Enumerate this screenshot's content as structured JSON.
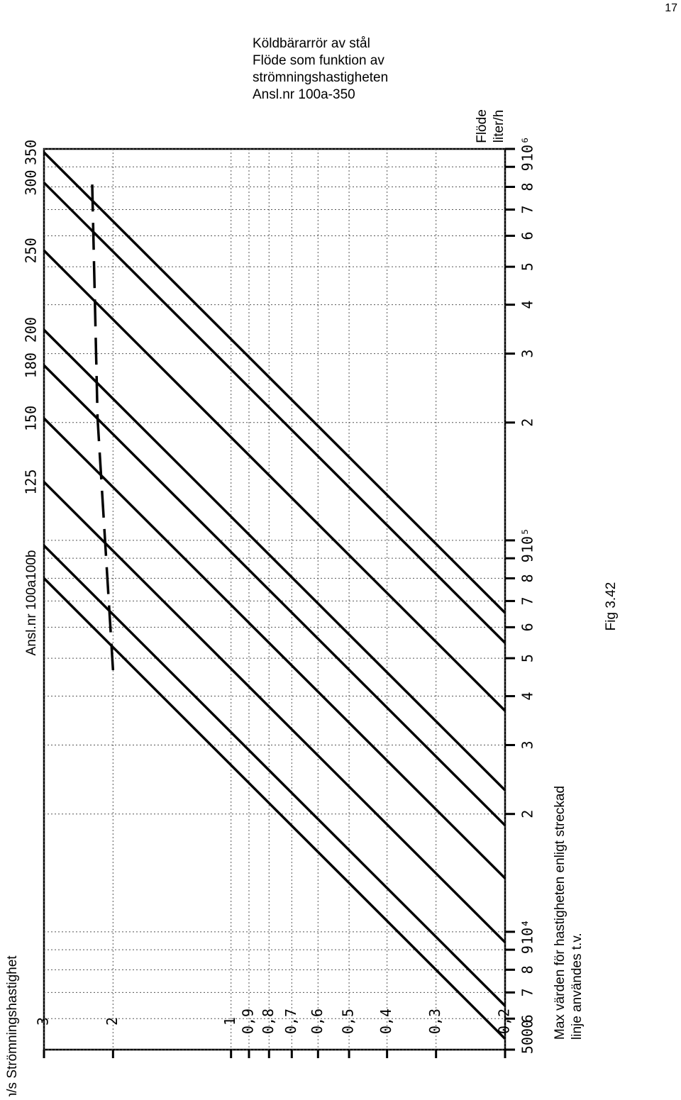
{
  "page_number": "17",
  "title_lines": [
    "Köldbärarrör av stål",
    "Flöde som funktion av",
    "strömningshastigheten",
    "Ansl.nr 100a-350"
  ],
  "figure_label": "Fig 3.42",
  "note_lines": [
    "Max värden för hastigheten enligt streckad",
    "linje användes t.v."
  ],
  "chart_data": {
    "type": "line",
    "xlabel": "m/s Strömningshastighet",
    "ylabel_lines": [
      "Flöde",
      "liter/h"
    ],
    "xscale": "log",
    "yscale": "log",
    "xlim": [
      0.2,
      3
    ],
    "ylim": [
      5000,
      1000000
    ],
    "xticks": [
      3,
      2,
      1,
      {
        "value": 0.9,
        "label": "0,9"
      },
      {
        "value": 0.8,
        "label": "0,8"
      },
      {
        "value": 0.7,
        "label": "0,7"
      },
      {
        "value": 0.6,
        "label": "0,6"
      },
      {
        "value": 0.5,
        "label": "0,5"
      },
      {
        "value": 0.4,
        "label": "0,4"
      },
      {
        "value": 0.3,
        "label": "0,3"
      },
      {
        "value": 0.2,
        "label": "0,2"
      }
    ],
    "yticks": [
      5000,
      {
        "value": 6000,
        "label": "6"
      },
      {
        "value": 7000,
        "label": "7"
      },
      {
        "value": 8000,
        "label": "8"
      },
      {
        "value": 9000,
        "label": "9"
      },
      {
        "value": 10000,
        "label": "10⁴"
      },
      {
        "value": 20000,
        "label": "2"
      },
      {
        "value": 30000,
        "label": "3"
      },
      {
        "value": 40000,
        "label": "4"
      },
      {
        "value": 50000,
        "label": "5"
      },
      {
        "value": 60000,
        "label": "6"
      },
      {
        "value": 70000,
        "label": "7"
      },
      {
        "value": 80000,
        "label": "8"
      },
      {
        "value": 90000,
        "label": "9"
      },
      {
        "value": 100000,
        "label": "10⁵"
      },
      {
        "value": 200000,
        "label": "2"
      },
      {
        "value": 300000,
        "label": "3"
      },
      {
        "value": 400000,
        "label": "4"
      },
      {
        "value": 500000,
        "label": "5"
      },
      {
        "value": 600000,
        "label": "6"
      },
      {
        "value": 700000,
        "label": "7"
      },
      {
        "value": 800000,
        "label": "8"
      },
      {
        "value": 900000,
        "label": "9"
      },
      {
        "value": 1000000,
        "label": "10⁶"
      }
    ],
    "grid": true,
    "color": "#000000",
    "series": [
      {
        "name": "350",
        "x": [
          3,
          0.2
        ],
        "values": [
          980000,
          65300
        ]
      },
      {
        "name": "300",
        "x": [
          3,
          0.2
        ],
        "values": [
          820000,
          54700
        ]
      },
      {
        "name": "250",
        "x": [
          3,
          0.2
        ],
        "values": [
          550000,
          36700
        ]
      },
      {
        "name": "200",
        "x": [
          3,
          0.2
        ],
        "values": [
          345000,
          23000
        ]
      },
      {
        "name": "180",
        "x": [
          3,
          0.2
        ],
        "values": [
          280000,
          18700
        ]
      },
      {
        "name": "150",
        "x": [
          3,
          0.2
        ],
        "values": [
          205000,
          13700
        ]
      },
      {
        "name": "125",
        "x": [
          3,
          0.2
        ],
        "values": [
          141000,
          9400
        ]
      },
      {
        "name": null,
        "x": [
          3,
          0.2
        ],
        "values": [
          97000,
          6470
        ]
      },
      {
        "name": null,
        "x": [
          3,
          0.2
        ],
        "values": [
          80000,
          5330
        ]
      }
    ],
    "small_pipe_label": "Ansl.nr 100a100b",
    "max_velocity_line": {
      "x": [
        2.26,
        2.19,
        2.0
      ],
      "values": [
        811000,
        205000,
        46600
      ]
    }
  }
}
